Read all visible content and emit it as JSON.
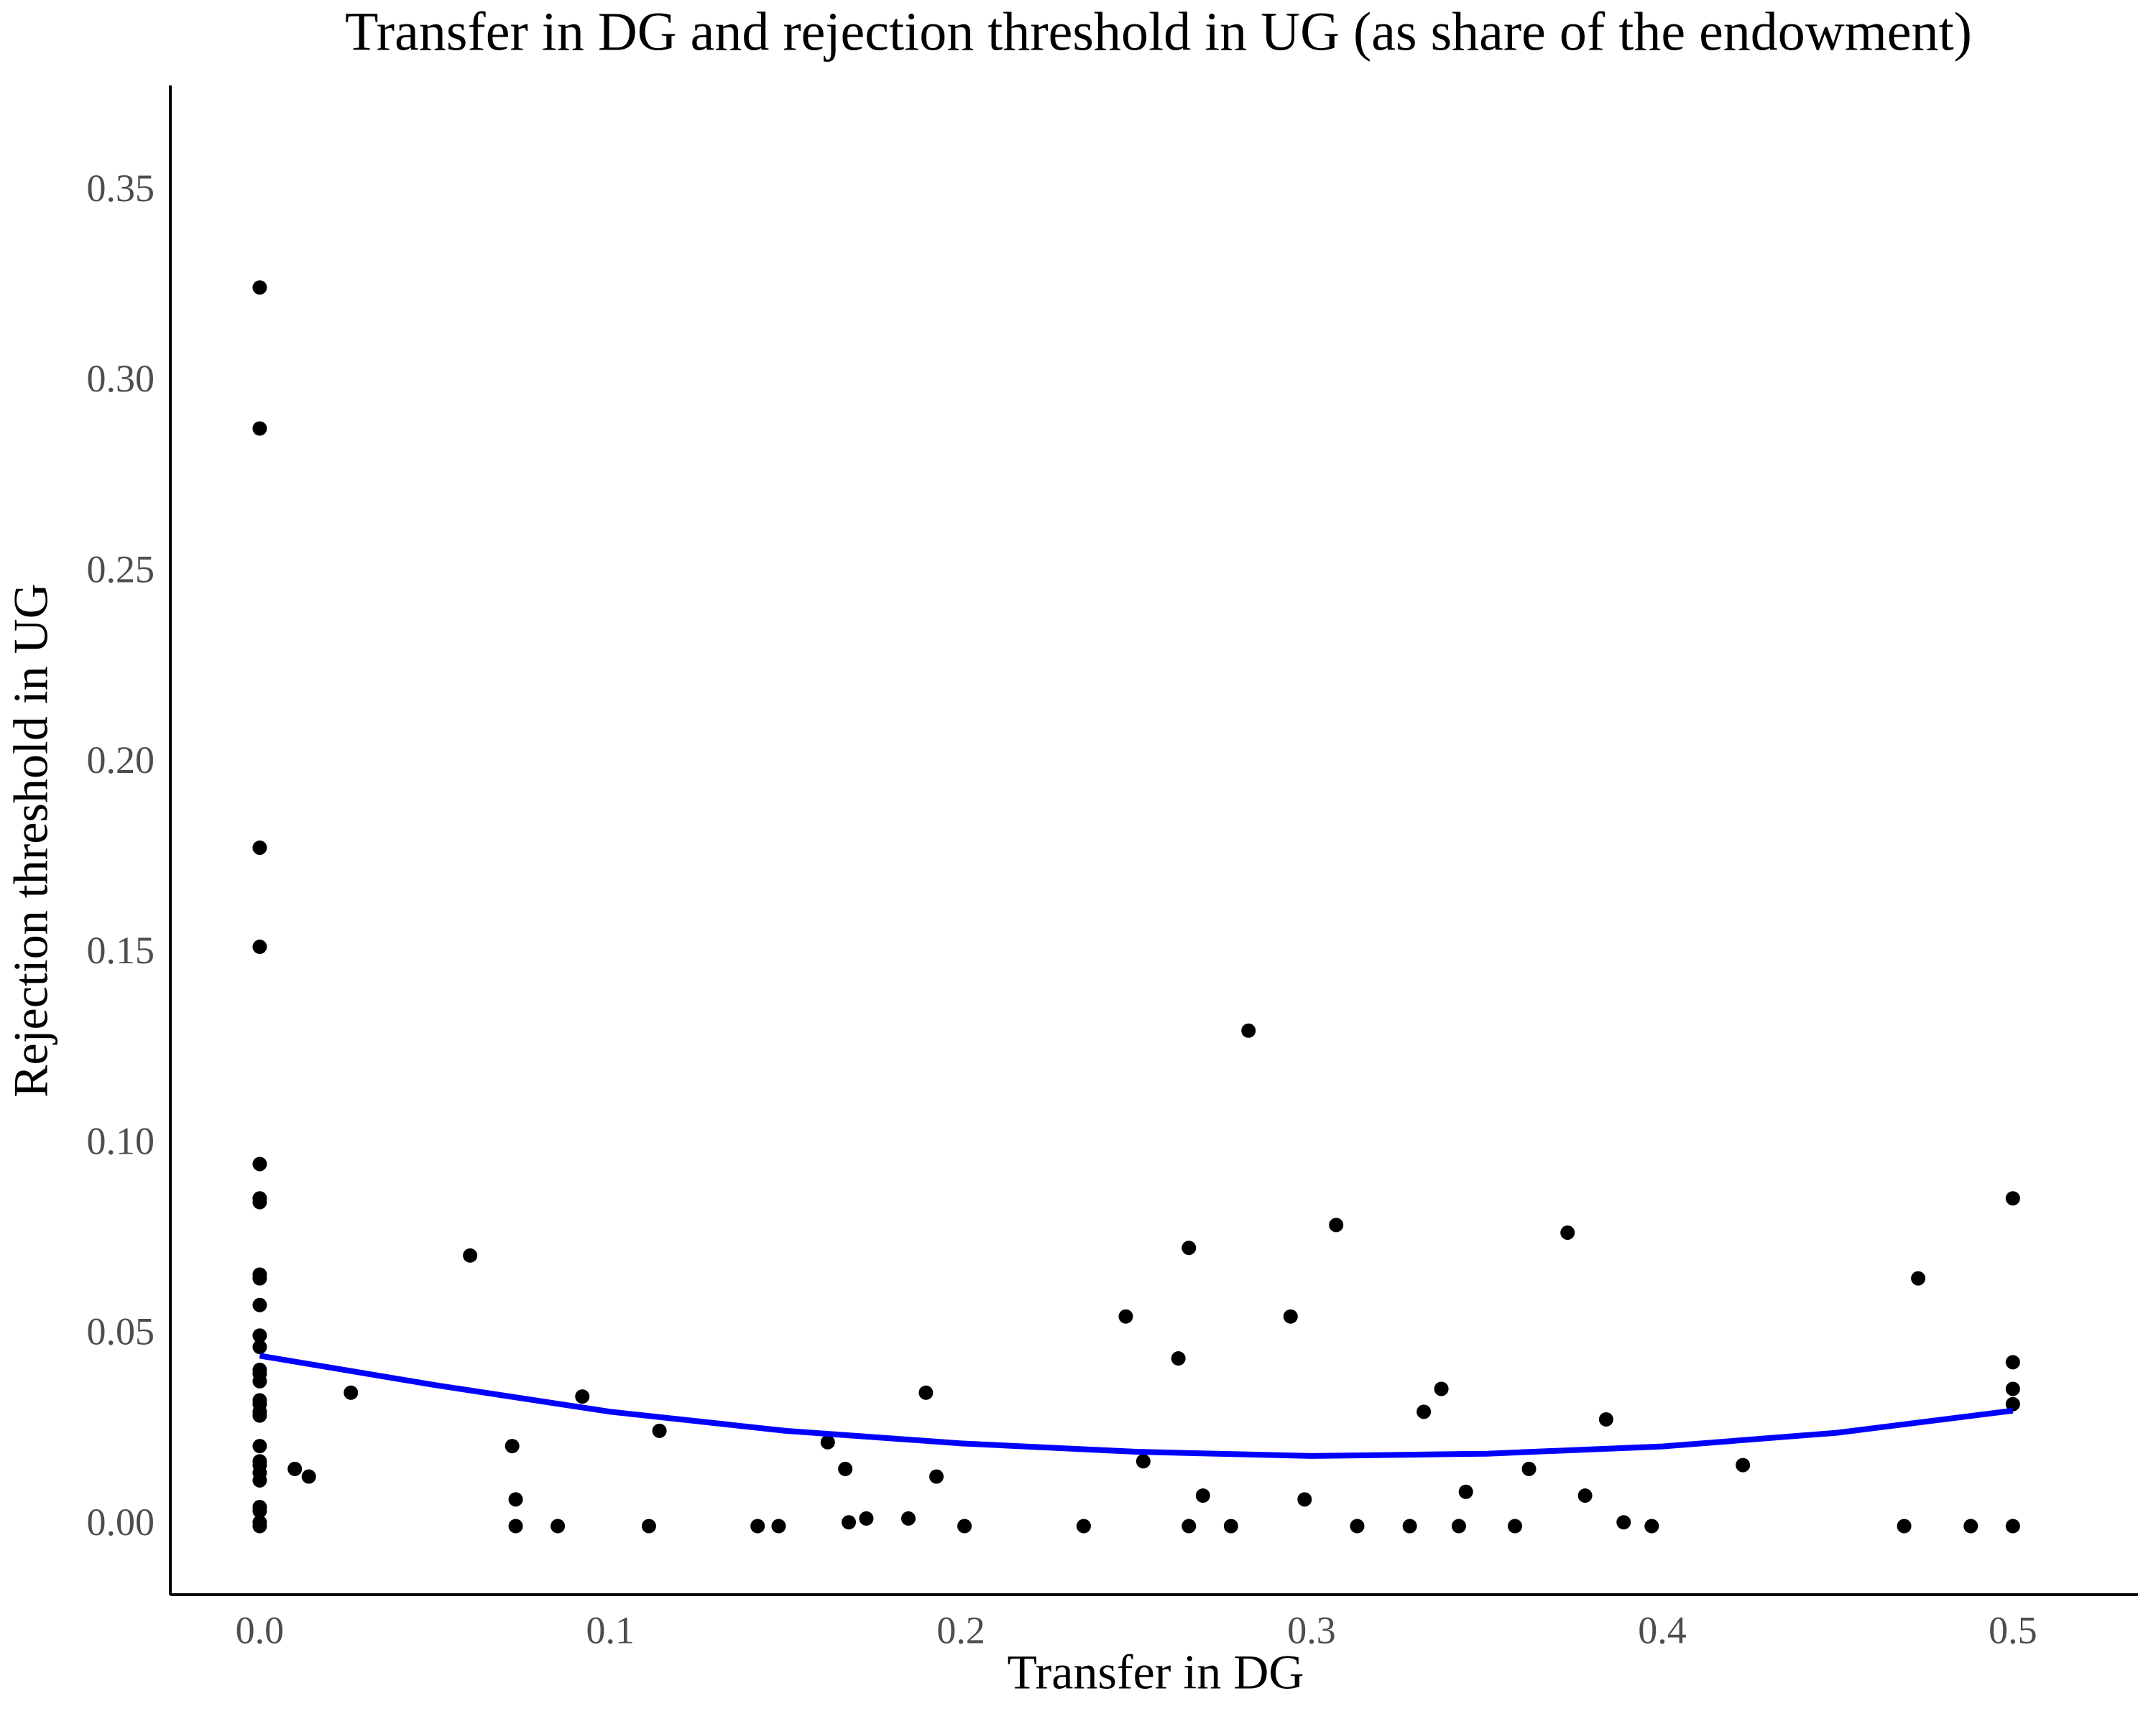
{
  "chart_data": {
    "type": "scatter",
    "title": "Transfer in DG and rejection threshold in UG (as share of the endowment)",
    "x_label": "Transfer in DG",
    "y_label": "Rejection threshold in UG",
    "xlim": [
      -0.0255,
      0.5357
    ],
    "ylim": [
      -0.018,
      0.378
    ],
    "xticks": [
      {
        "value": 0,
        "label": "0.0"
      },
      {
        "value": 0.1,
        "label": "0.1"
      },
      {
        "value": 0.2,
        "label": "0.2"
      },
      {
        "value": 0.3,
        "label": "0.3"
      },
      {
        "value": 0.4,
        "label": "0.4"
      },
      {
        "value": 0.5,
        "label": "0.5"
      }
    ],
    "yticks": [
      {
        "value": 0,
        "label": "0.00"
      },
      {
        "value": 0.05,
        "label": "0.05"
      },
      {
        "value": 0.1,
        "label": "0.10"
      },
      {
        "value": 0.15,
        "label": "0.15"
      },
      {
        "value": 0.2,
        "label": "0.20"
      },
      {
        "value": 0.25,
        "label": "0.25"
      },
      {
        "value": 0.3,
        "label": "0.30"
      },
      {
        "value": 0.35,
        "label": "0.35"
      }
    ],
    "points": {
      "color": "#000000",
      "x": [
        0,
        0,
        0,
        0,
        0,
        0,
        0,
        0,
        0,
        0,
        0,
        0,
        0,
        0,
        0,
        0,
        0,
        0,
        0,
        0,
        0,
        0,
        0,
        0,
        0,
        0,
        0,
        0,
        0.01,
        0.014,
        0.026,
        0.06,
        0.072,
        0.073,
        0.073,
        0.085,
        0.092,
        0.111,
        0.114,
        0.142,
        0.148,
        0.162,
        0.167,
        0.168,
        0.173,
        0.185,
        0.19,
        0.193,
        0.201,
        0.235,
        0.247,
        0.252,
        0.262,
        0.265,
        0.265,
        0.269,
        0.277,
        0.282,
        0.294,
        0.298,
        0.307,
        0.313,
        0.328,
        0.332,
        0.337,
        0.342,
        0.344,
        0.358,
        0.362,
        0.373,
        0.378,
        0.384,
        0.389,
        0.397,
        0.423,
        0.469,
        0.473,
        0.488,
        0.5,
        0.5,
        0.5,
        0.5,
        0.5
      ],
      "y": [
        0.325,
        0.288,
        0.178,
        0.152,
        0.095,
        0.086,
        0.085,
        0.066,
        0.065,
        0.058,
        0.05,
        0.047,
        0.041,
        0.04,
        0.038,
        0.033,
        0.032,
        0.03,
        0.029,
        0.021,
        0.017,
        0.016,
        0.014,
        0.012,
        0.005,
        0.004,
        0.001,
        0,
        0.015,
        0.013,
        0.035,
        0.071,
        0.021,
        0.007,
        0,
        0,
        0.034,
        0,
        0.025,
        0,
        0,
        0.022,
        0.015,
        0.001,
        0.002,
        0.002,
        0.035,
        0.013,
        0,
        0,
        0.055,
        0.017,
        0.044,
        0,
        0.073,
        0.008,
        0,
        0.13,
        0.055,
        0.007,
        0.079,
        0,
        0,
        0.03,
        0.036,
        0,
        0.009,
        0,
        0.015,
        0.077,
        0.008,
        0.028,
        0.001,
        0,
        0.016,
        0,
        0.065,
        0,
        0.086,
        0.043,
        0.036,
        0.032,
        0
      ]
    },
    "fit": {
      "color": "#0000ff",
      "x": [
        0,
        0.05,
        0.1,
        0.15,
        0.2,
        0.25,
        0.3,
        0.35,
        0.4,
        0.45,
        0.5
      ],
      "y": [
        0.0447,
        0.037,
        0.03,
        0.025,
        0.0217,
        0.0195,
        0.0184,
        0.019,
        0.0209,
        0.0245,
        0.0303
      ]
    }
  }
}
